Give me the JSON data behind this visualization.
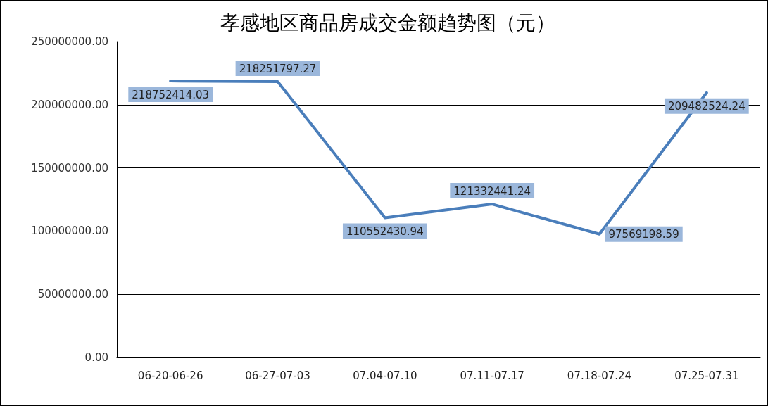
{
  "chart_data": {
    "type": "line",
    "title": "孝感地区商品房成交金额趋势图（元）",
    "categories": [
      "06-20-06-26",
      "06-27-07-03",
      "07.04-07.10",
      "07.11-07.17",
      "07.18-07.24",
      "07.25-07.31"
    ],
    "series": [
      {
        "color": "#4a7ebb",
        "values": [
          218752414.03,
          218251797.27,
          110552430.94,
          121332441.24,
          97569198.59,
          209482524.24
        ]
      }
    ],
    "ylim": [
      0,
      250000000
    ],
    "yticks": [
      {
        "value": 0,
        "label": "0.00"
      },
      {
        "value": 50000000,
        "label": "50000000.00"
      },
      {
        "value": 100000000,
        "label": "100000000.00"
      },
      {
        "value": 150000000,
        "label": "150000000.00"
      },
      {
        "value": 200000000,
        "label": "200000000.00"
      },
      {
        "value": 250000000,
        "label": "250000000.00"
      }
    ],
    "grid": "y",
    "marker": "none",
    "line_style": "solid",
    "data_labels": true
  }
}
